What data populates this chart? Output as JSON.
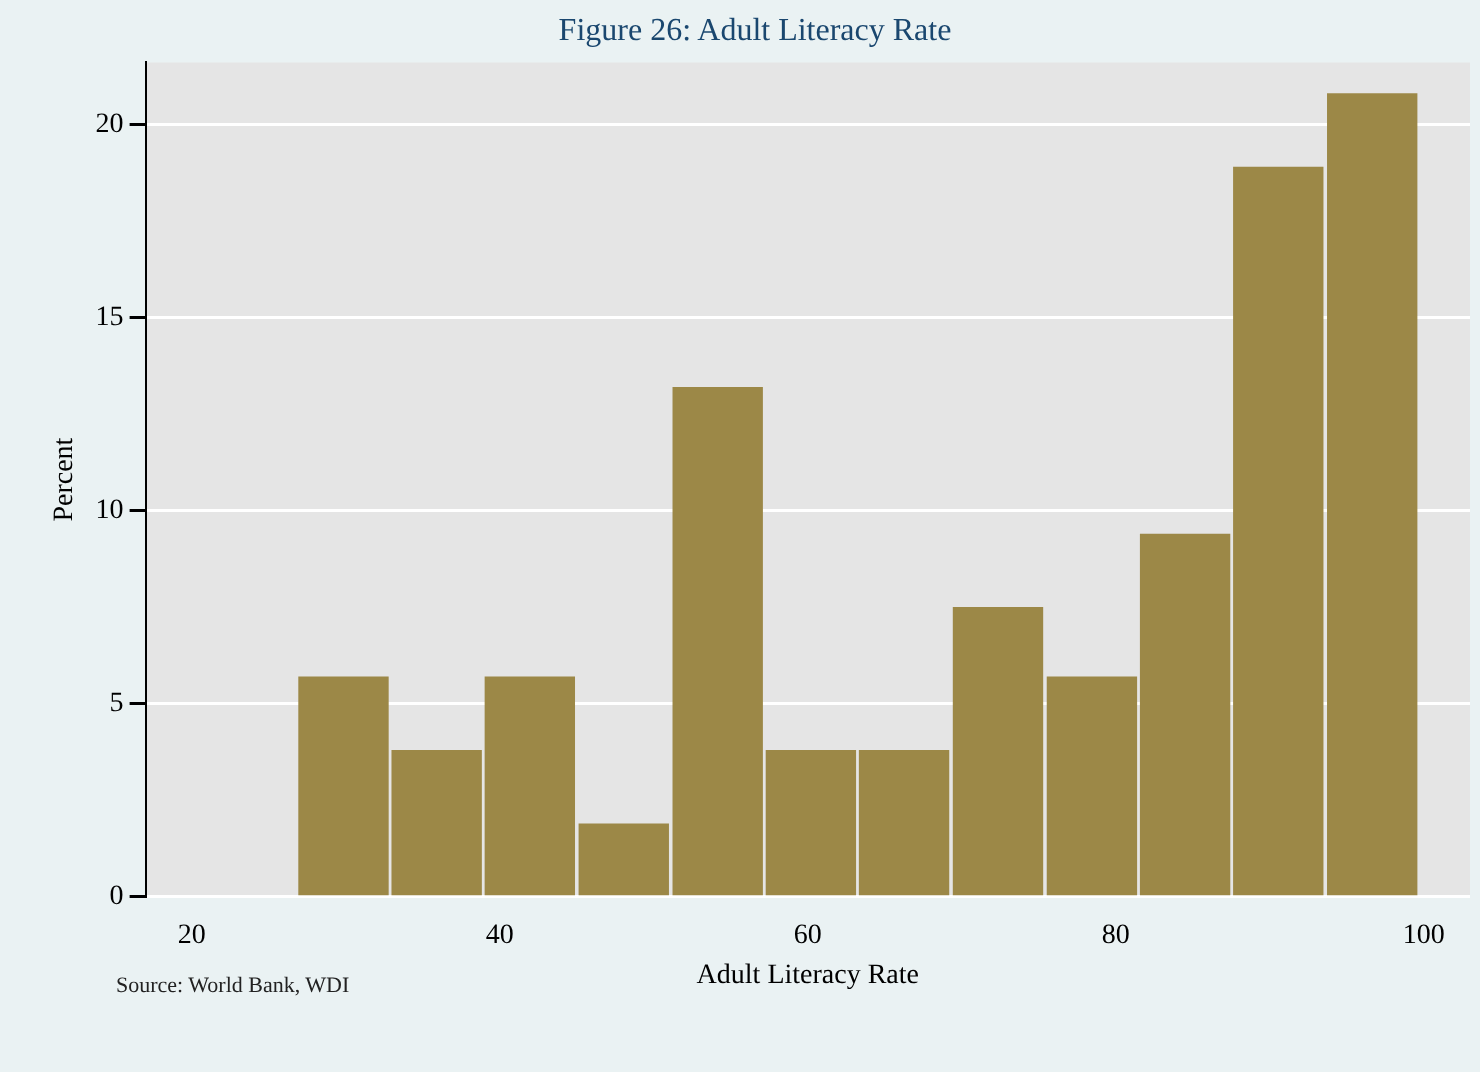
{
  "chart_data": {
    "type": "histogram",
    "title": "Figure 26: Adult Literacy Rate",
    "xlabel": "Adult Literacy Rate",
    "ylabel": "Percent",
    "bins": [
      26.8,
      32.9,
      38.9,
      45.0,
      51.1,
      57.2,
      63.2,
      69.3,
      75.4,
      81.5,
      87.5,
      93.6,
      99.7
    ],
    "values": [
      5.7,
      3.8,
      5.7,
      1.9,
      13.2,
      3.8,
      3.8,
      7.5,
      5.7,
      9.4,
      18.9,
      20.8
    ],
    "color": "#9c8847",
    "xlim": [
      17,
      103
    ],
    "xticks": [
      20,
      40,
      60,
      80,
      100
    ],
    "ylim": [
      0,
      21.6
    ],
    "yticks": [
      0,
      5,
      10,
      15,
      20
    ],
    "grid": "y",
    "annotations": [
      "Source: World Bank, WDI"
    ]
  }
}
